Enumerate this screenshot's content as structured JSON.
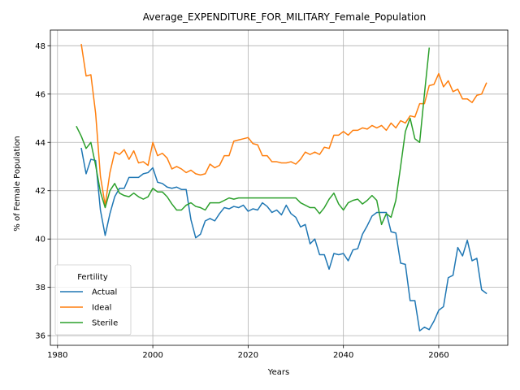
{
  "chart_data": {
    "type": "line",
    "title": "Average_EXPENDITURE_FOR_MILITARY_Female_Population",
    "xlabel": "Years",
    "ylabel": "% of Female Population",
    "xlim": [
      1978.5,
      2074.5
    ],
    "ylim": [
      35.6,
      48.65
    ],
    "xticks": [
      1980,
      2000,
      2020,
      2040,
      2060
    ],
    "yticks": [
      36,
      38,
      40,
      42,
      44,
      46,
      48
    ],
    "grid": true,
    "legend": {
      "title": "Fertility",
      "position": "lower-left"
    },
    "series": [
      {
        "name": "Actual",
        "color": "#1f77b4",
        "x": [
          1985,
          1986,
          1987,
          1988,
          1989,
          1990,
          1991,
          1992,
          1993,
          1994,
          1995,
          1996,
          1997,
          1998,
          1999,
          2000,
          2001,
          2002,
          2003,
          2004,
          2005,
          2006,
          2007,
          2008,
          2009,
          2010,
          2011,
          2012,
          2013,
          2014,
          2015,
          2016,
          2017,
          2018,
          2019,
          2020,
          2021,
          2022,
          2023,
          2024,
          2025,
          2026,
          2027,
          2028,
          2029,
          2030,
          2031,
          2032,
          2033,
          2034,
          2035,
          2036,
          2037,
          2038,
          2039,
          2040,
          2041,
          2042,
          2043,
          2044,
          2045,
          2046,
          2047,
          2048,
          2049,
          2050,
          2051,
          2052,
          2053,
          2054,
          2055,
          2056,
          2057,
          2058,
          2059,
          2060,
          2061,
          2062,
          2063,
          2064,
          2065,
          2066,
          2067,
          2068,
          2069,
          2070
        ],
        "y": [
          43.75,
          42.7,
          43.3,
          43.25,
          41.2,
          40.15,
          41.05,
          41.75,
          42.1,
          42.1,
          42.55,
          42.55,
          42.55,
          42.7,
          42.75,
          42.95,
          42.35,
          42.3,
          42.15,
          42.1,
          42.15,
          42.05,
          42.05,
          40.8,
          40.05,
          40.2,
          40.75,
          40.85,
          40.75,
          41.05,
          41.3,
          41.25,
          41.35,
          41.3,
          41.4,
          41.15,
          41.25,
          41.2,
          41.5,
          41.35,
          41.1,
          41.2,
          41.0,
          41.4,
          41.05,
          40.9,
          40.5,
          40.6,
          39.8,
          40.0,
          39.35,
          39.35,
          38.75,
          39.4,
          39.35,
          39.4,
          39.1,
          39.55,
          39.6,
          40.2,
          40.55,
          40.95,
          41.1,
          41.1,
          41.1,
          40.3,
          40.25,
          39.0,
          38.95,
          37.45,
          37.45,
          36.2,
          36.35,
          36.25,
          36.6,
          37.05,
          37.2,
          38.4,
          38.5,
          39.65,
          39.3,
          39.95,
          39.1,
          39.2,
          37.9,
          37.75
        ]
      },
      {
        "name": "Ideal",
        "color": "#ff7f0e",
        "x": [
          1985,
          1986,
          1987,
          1988,
          1989,
          1990,
          1991,
          1992,
          1993,
          1994,
          1995,
          1996,
          1997,
          1998,
          1999,
          2000,
          2001,
          2002,
          2003,
          2004,
          2005,
          2006,
          2007,
          2008,
          2009,
          2010,
          2011,
          2012,
          2013,
          2014,
          2015,
          2016,
          2017,
          2018,
          2019,
          2020,
          2021,
          2022,
          2023,
          2024,
          2025,
          2026,
          2027,
          2028,
          2029,
          2030,
          2031,
          2032,
          2033,
          2034,
          2035,
          2036,
          2037,
          2038,
          2039,
          2040,
          2041,
          2042,
          2043,
          2044,
          2045,
          2046,
          2047,
          2048,
          2049,
          2050,
          2051,
          2052,
          2053,
          2054,
          2055,
          2056,
          2057,
          2058,
          2059,
          2060,
          2061,
          2062,
          2063,
          2064,
          2065,
          2066,
          2067,
          2068,
          2069,
          2070
        ],
        "y": [
          48.05,
          46.75,
          46.8,
          45.2,
          42.6,
          41.4,
          42.75,
          43.6,
          43.5,
          43.7,
          43.3,
          43.65,
          43.15,
          43.2,
          43.05,
          44.0,
          43.45,
          43.55,
          43.35,
          42.9,
          43.0,
          42.9,
          42.75,
          42.85,
          42.7,
          42.65,
          42.7,
          43.1,
          42.95,
          43.05,
          43.45,
          43.45,
          44.05,
          44.1,
          44.15,
          44.2,
          43.95,
          43.9,
          43.45,
          43.45,
          43.2,
          43.2,
          43.15,
          43.15,
          43.2,
          43.1,
          43.3,
          43.6,
          43.5,
          43.6,
          43.5,
          43.8,
          43.75,
          44.3,
          44.3,
          44.45,
          44.3,
          44.5,
          44.5,
          44.6,
          44.55,
          44.7,
          44.6,
          44.7,
          44.5,
          44.8,
          44.6,
          44.9,
          44.8,
          45.1,
          45.05,
          45.6,
          45.6,
          46.35,
          46.4,
          46.85,
          46.3,
          46.55,
          46.1,
          46.2,
          45.8,
          45.8,
          45.65,
          45.95,
          46.0,
          46.45
        ]
      },
      {
        "name": "Sterile",
        "color": "#2ca02c",
        "x": [
          1984,
          1985,
          1986,
          1987,
          1988,
          1989,
          1990,
          1991,
          1992,
          1993,
          1994,
          1995,
          1996,
          1997,
          1998,
          1999,
          2000,
          2001,
          2002,
          2003,
          2004,
          2005,
          2006,
          2007,
          2008,
          2009,
          2010,
          2011,
          2012,
          2013,
          2014,
          2015,
          2016,
          2017,
          2018,
          2019,
          2020,
          2021,
          2022,
          2023,
          2024,
          2025,
          2026,
          2027,
          2028,
          2029,
          2030,
          2031,
          2032,
          2033,
          2034,
          2035,
          2036,
          2037,
          2038,
          2039,
          2040,
          2041,
          2042,
          2043,
          2044,
          2045,
          2046,
          2047,
          2048,
          2049,
          2050,
          2051,
          2052,
          2053,
          2054,
          2055,
          2056,
          2057,
          2058,
          2059
        ],
        "y": [
          44.65,
          44.25,
          43.75,
          44.0,
          43.05,
          41.95,
          41.3,
          42.0,
          42.3,
          41.9,
          41.8,
          41.75,
          41.9,
          41.75,
          41.65,
          41.75,
          42.1,
          41.95,
          41.95,
          41.75,
          41.45,
          41.2,
          41.2,
          41.4,
          41.5,
          41.35,
          41.3,
          41.2,
          41.5,
          41.5,
          41.5,
          41.6,
          41.7,
          41.65,
          41.7,
          41.7,
          41.7,
          41.7,
          41.7,
          41.7,
          41.7,
          41.7,
          41.7,
          41.7,
          41.7,
          41.7,
          41.7,
          41.5,
          41.4,
          41.3,
          41.3,
          41.05,
          41.3,
          41.65,
          41.9,
          41.45,
          41.2,
          41.5,
          41.6,
          41.65,
          41.45,
          41.6,
          41.8,
          41.6,
          40.6,
          41.05,
          40.9,
          41.6,
          43.0,
          44.45,
          45.0,
          44.15,
          44.0,
          46.0,
          47.9,
          null
        ]
      }
    ]
  }
}
